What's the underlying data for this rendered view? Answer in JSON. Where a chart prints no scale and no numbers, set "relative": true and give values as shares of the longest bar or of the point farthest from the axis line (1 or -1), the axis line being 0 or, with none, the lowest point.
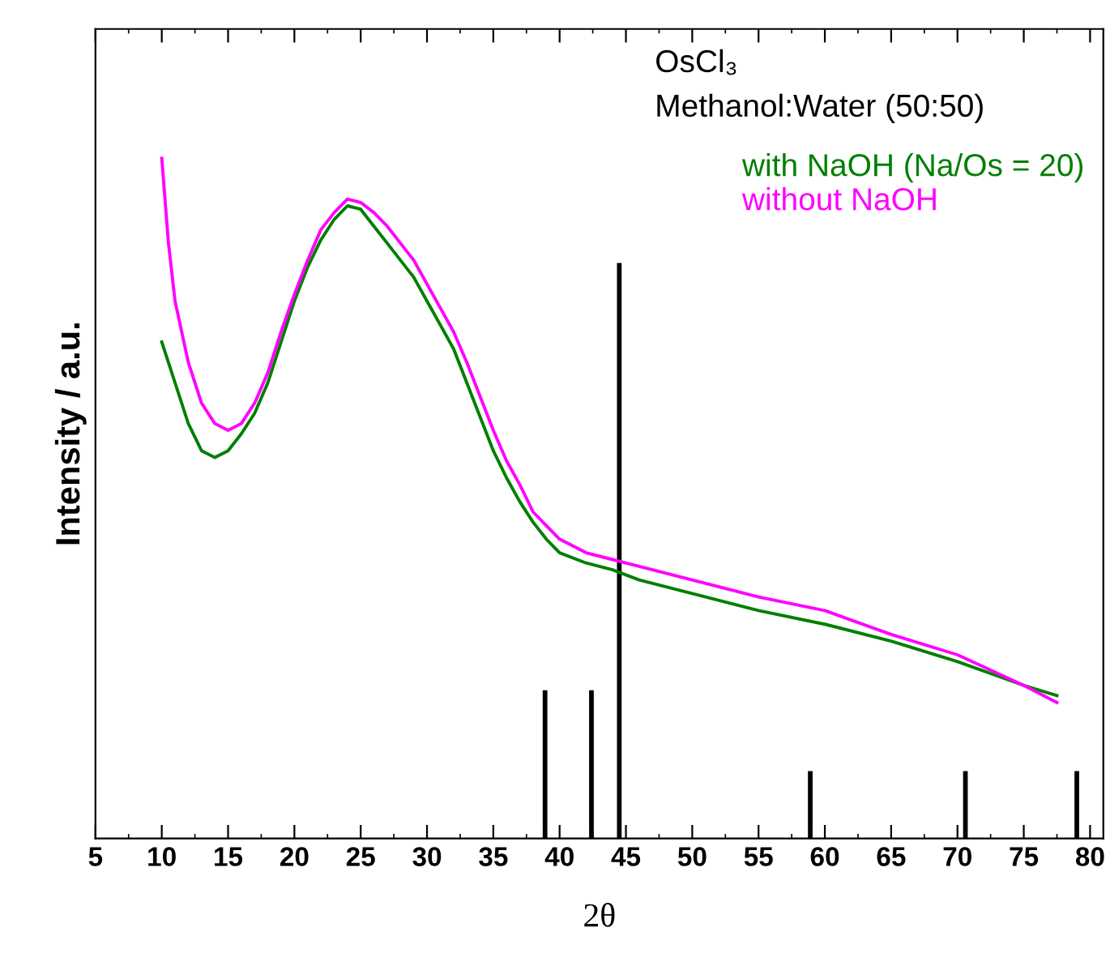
{
  "chart_data": {
    "type": "line",
    "relative": true,
    "xlabel": "2θ",
    "ylabel": "Intensity / a.u.",
    "xlim": [
      5,
      81
    ],
    "xticks": [
      5,
      10,
      15,
      20,
      25,
      30,
      35,
      40,
      45,
      50,
      55,
      60,
      65,
      70,
      75,
      80
    ],
    "legend": "top right",
    "grid": false,
    "annotations": [
      "OsCl₃",
      "Methanol:Water (50:50)"
    ],
    "series": [
      {
        "name": "with NaOH (Na/Os = 20)",
        "color": "#007f00",
        "x": [
          10,
          10.5,
          11,
          12,
          13,
          14,
          15,
          16,
          17,
          18,
          19,
          20,
          21,
          22,
          23,
          24,
          25,
          26,
          27,
          28,
          29,
          30,
          31,
          32,
          33,
          34,
          35,
          36,
          37,
          38,
          39,
          40,
          42,
          44,
          46,
          50,
          55,
          60,
          65,
          70,
          75,
          77.5
        ],
        "values": [
          0.73,
          0.7,
          0.67,
          0.61,
          0.57,
          0.56,
          0.57,
          0.595,
          0.625,
          0.67,
          0.73,
          0.79,
          0.84,
          0.88,
          0.91,
          0.93,
          0.925,
          0.9,
          0.875,
          0.85,
          0.825,
          0.79,
          0.755,
          0.72,
          0.67,
          0.62,
          0.57,
          0.53,
          0.495,
          0.465,
          0.44,
          0.42,
          0.405,
          0.395,
          0.38,
          0.36,
          0.335,
          0.315,
          0.29,
          0.26,
          0.225,
          0.21
        ]
      },
      {
        "name": "without NaOH",
        "color": "#ff00ff",
        "x": [
          10,
          10.5,
          11,
          12,
          13,
          14,
          15,
          16,
          17,
          18,
          19,
          20,
          21,
          22,
          23,
          24,
          25,
          26,
          27,
          28,
          29,
          30,
          31,
          32,
          33,
          34,
          35,
          36,
          37,
          38,
          39,
          40,
          42,
          44,
          46,
          50,
          55,
          60,
          65,
          70,
          75,
          77.5
        ],
        "values": [
          1.0,
          0.876,
          0.79,
          0.7,
          0.64,
          0.61,
          0.6,
          0.61,
          0.64,
          0.685,
          0.745,
          0.8,
          0.85,
          0.895,
          0.92,
          0.94,
          0.935,
          0.92,
          0.9,
          0.875,
          0.85,
          0.815,
          0.78,
          0.745,
          0.7,
          0.65,
          0.6,
          0.555,
          0.52,
          0.48,
          0.46,
          0.44,
          0.42,
          0.41,
          0.4,
          0.38,
          0.355,
          0.335,
          0.3,
          0.27,
          0.225,
          0.2
        ]
      },
      {
        "type": "bar",
        "color": "#000000",
        "x": [
          38.9,
          42.4,
          44.5,
          58.9,
          70.6,
          79.0
        ],
        "values": [
          0.217,
          0.217,
          0.845,
          0.098,
          0.098,
          0.098
        ]
      }
    ]
  }
}
